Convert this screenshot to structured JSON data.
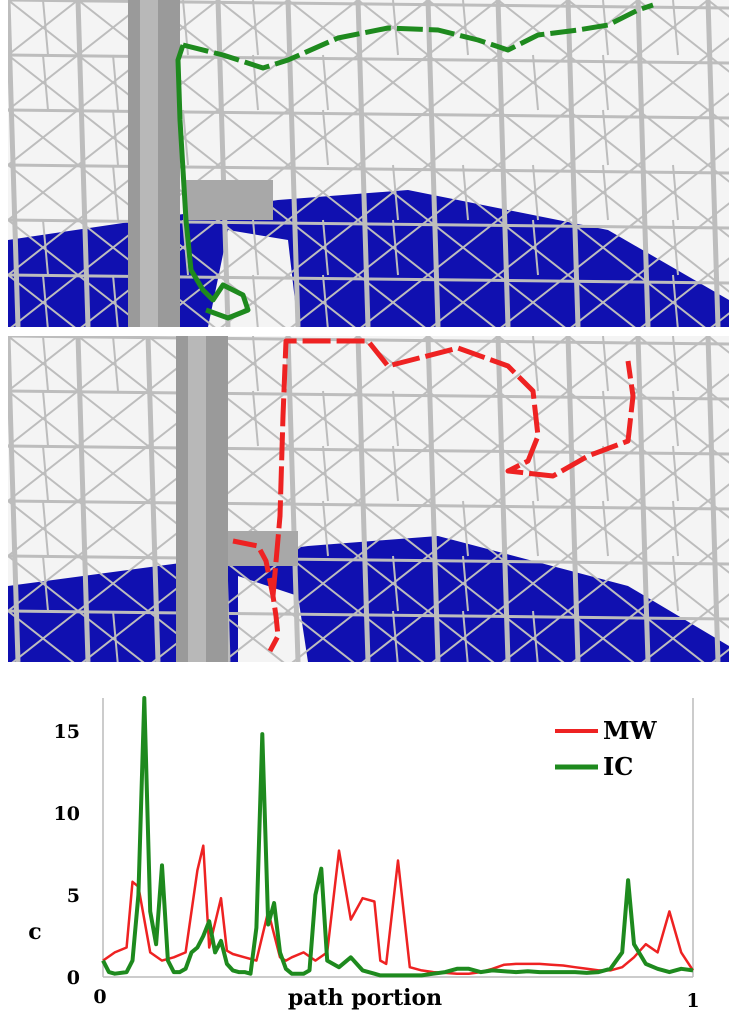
{
  "panels": [
    {
      "path_color": "#1e8a1e",
      "floor_color": "#1010b0",
      "structure_color": "#bdbdbd"
    },
    {
      "path_color": "#ee2222",
      "floor_color": "#1010b0",
      "structure_color": "#bdbdbd"
    }
  ],
  "chart_data": {
    "type": "line",
    "xlabel": "path portion",
    "ylabel": "c",
    "xlim": [
      0,
      1
    ],
    "ylim": [
      0,
      17
    ],
    "x_ticks": [
      "0",
      "1"
    ],
    "y_ticks": [
      "0",
      "5",
      "10",
      "15"
    ],
    "legend_position": "top-right",
    "grid": false,
    "series": [
      {
        "name": "MW",
        "color": "#ee2222",
        "x": [
          0,
          0.02,
          0.04,
          0.05,
          0.06,
          0.08,
          0.1,
          0.12,
          0.14,
          0.16,
          0.17,
          0.18,
          0.2,
          0.21,
          0.22,
          0.24,
          0.26,
          0.28,
          0.3,
          0.31,
          0.32,
          0.34,
          0.36,
          0.38,
          0.4,
          0.42,
          0.44,
          0.46,
          0.47,
          0.48,
          0.5,
          0.52,
          0.54,
          0.56,
          0.58,
          0.6,
          0.62,
          0.64,
          0.66,
          0.68,
          0.7,
          0.72,
          0.74,
          0.76,
          0.78,
          0.8,
          0.82,
          0.84,
          0.86,
          0.88,
          0.9,
          0.92,
          0.94,
          0.96,
          0.98,
          1.0
        ],
        "y": [
          1.0,
          1.5,
          1.8,
          5.8,
          5.5,
          1.5,
          1.0,
          1.2,
          1.5,
          6.5,
          8.0,
          1.8,
          4.8,
          1.6,
          1.4,
          1.2,
          1.0,
          4.0,
          1.2,
          1.0,
          1.2,
          1.5,
          1.0,
          1.5,
          7.7,
          3.5,
          4.8,
          4.6,
          1.0,
          0.8,
          7.1,
          0.6,
          0.4,
          0.3,
          0.25,
          0.2,
          0.2,
          0.3,
          0.5,
          0.75,
          0.8,
          0.8,
          0.8,
          0.75,
          0.7,
          0.6,
          0.5,
          0.4,
          0.4,
          0.6,
          1.2,
          2.0,
          1.5,
          4.0,
          1.5,
          0.4
        ]
      },
      {
        "name": "IC",
        "color": "#1e8a1e",
        "x": [
          0,
          0.01,
          0.02,
          0.04,
          0.05,
          0.06,
          0.07,
          0.08,
          0.09,
          0.1,
          0.11,
          0.12,
          0.13,
          0.14,
          0.15,
          0.16,
          0.17,
          0.18,
          0.19,
          0.2,
          0.21,
          0.22,
          0.23,
          0.24,
          0.25,
          0.26,
          0.27,
          0.28,
          0.29,
          0.3,
          0.31,
          0.32,
          0.33,
          0.34,
          0.35,
          0.36,
          0.37,
          0.38,
          0.4,
          0.42,
          0.44,
          0.46,
          0.47,
          0.48,
          0.49,
          0.5,
          0.51,
          0.52,
          0.54,
          0.56,
          0.58,
          0.6,
          0.62,
          0.64,
          0.66,
          0.68,
          0.7,
          0.72,
          0.74,
          0.76,
          0.78,
          0.8,
          0.82,
          0.84,
          0.86,
          0.88,
          0.89,
          0.9,
          0.92,
          0.94,
          0.96,
          0.98,
          1.0
        ],
        "y": [
          1.0,
          0.3,
          0.2,
          0.3,
          1.0,
          5.0,
          17.0,
          4.0,
          2.0,
          6.8,
          1.0,
          0.3,
          0.3,
          0.5,
          1.5,
          1.8,
          2.5,
          3.4,
          1.5,
          2.2,
          0.8,
          0.4,
          0.3,
          0.3,
          0.2,
          3.0,
          14.8,
          3.2,
          4.5,
          1.5,
          0.5,
          0.2,
          0.2,
          0.2,
          0.4,
          5.0,
          6.6,
          1.0,
          0.6,
          1.2,
          0.4,
          0.2,
          0.1,
          0.1,
          0.1,
          0.1,
          0.1,
          0.1,
          0.1,
          0.2,
          0.3,
          0.5,
          0.5,
          0.3,
          0.4,
          0.35,
          0.3,
          0.35,
          0.3,
          0.3,
          0.3,
          0.3,
          0.25,
          0.3,
          0.5,
          1.5,
          5.9,
          2.0,
          0.8,
          0.5,
          0.3,
          0.5,
          0.4
        ]
      }
    ]
  }
}
